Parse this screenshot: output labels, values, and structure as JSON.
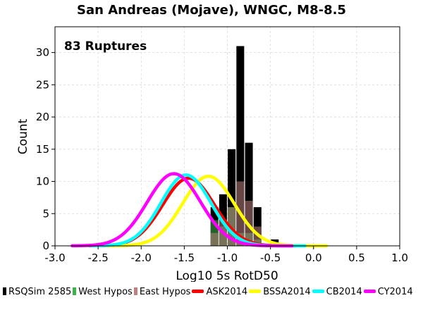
{
  "chart_data": {
    "type": "histogram",
    "title": "San Andreas (Mojave), WNGC, M8-8.5",
    "annotation": "83 Ruptures",
    "xlabel": "Log10 5s RotD50",
    "ylabel": "Count",
    "xlim": [
      -3.0,
      1.0
    ],
    "ylim": [
      0,
      34
    ],
    "xticks": [
      "-3.0",
      "-2.5",
      "-2.0",
      "-1.5",
      "-1.0",
      "-0.5",
      "0.0",
      "0.5",
      "1.0"
    ],
    "yticks": [
      "0",
      "5",
      "10",
      "15",
      "20",
      "25",
      "30"
    ],
    "grid": true,
    "legend_position": "bottom",
    "bin_width": 0.1,
    "histograms": [
      {
        "name": "RSQSim 2585",
        "color": "#000000",
        "bins": [
          {
            "x": -1.15,
            "count": 6
          },
          {
            "x": -1.05,
            "count": 8
          },
          {
            "x": -0.95,
            "count": 15
          },
          {
            "x": -0.85,
            "count": 31
          },
          {
            "x": -0.75,
            "count": 16
          },
          {
            "x": -0.65,
            "count": 6
          },
          {
            "x": -0.45,
            "count": 1
          }
        ]
      },
      {
        "name": "West Hypos",
        "color": "#3cb44b",
        "bins": [
          {
            "x": -1.15,
            "count": 4
          },
          {
            "x": -1.05,
            "count": 3
          },
          {
            "x": -0.95,
            "count": 6
          },
          {
            "x": -0.85,
            "count": 2
          },
          {
            "x": -0.75,
            "count": 2
          },
          {
            "x": -0.65,
            "count": 1
          }
        ]
      },
      {
        "name": "East Hypos",
        "color": "#c08080",
        "bins": [
          {
            "x": -1.15,
            "count": 2
          },
          {
            "x": -1.05,
            "count": 4
          },
          {
            "x": -0.95,
            "count": 6
          },
          {
            "x": -0.85,
            "count": 10
          },
          {
            "x": -0.75,
            "count": 7
          },
          {
            "x": -0.65,
            "count": 3
          }
        ]
      }
    ],
    "curves": [
      {
        "name": "ASK2014",
        "color": "#ff0000",
        "mean": -1.45,
        "sigma": 0.3,
        "peak": 10.5,
        "x_range": [
          -2.6,
          -0.2
        ]
      },
      {
        "name": "BSSA2014",
        "color": "#ffff00",
        "mean": -1.22,
        "sigma": 0.3,
        "peak": 10.8,
        "x_range": [
          -2.4,
          0.15
        ]
      },
      {
        "name": "CB2014",
        "color": "#00ffff",
        "mean": -1.48,
        "sigma": 0.29,
        "peak": 11.0,
        "x_range": [
          -2.6,
          -0.1
        ]
      },
      {
        "name": "CY2014",
        "color": "#ff00ff",
        "mean": -1.62,
        "sigma": 0.31,
        "peak": 11.2,
        "x_range": [
          -2.8,
          -0.25
        ]
      }
    ]
  }
}
